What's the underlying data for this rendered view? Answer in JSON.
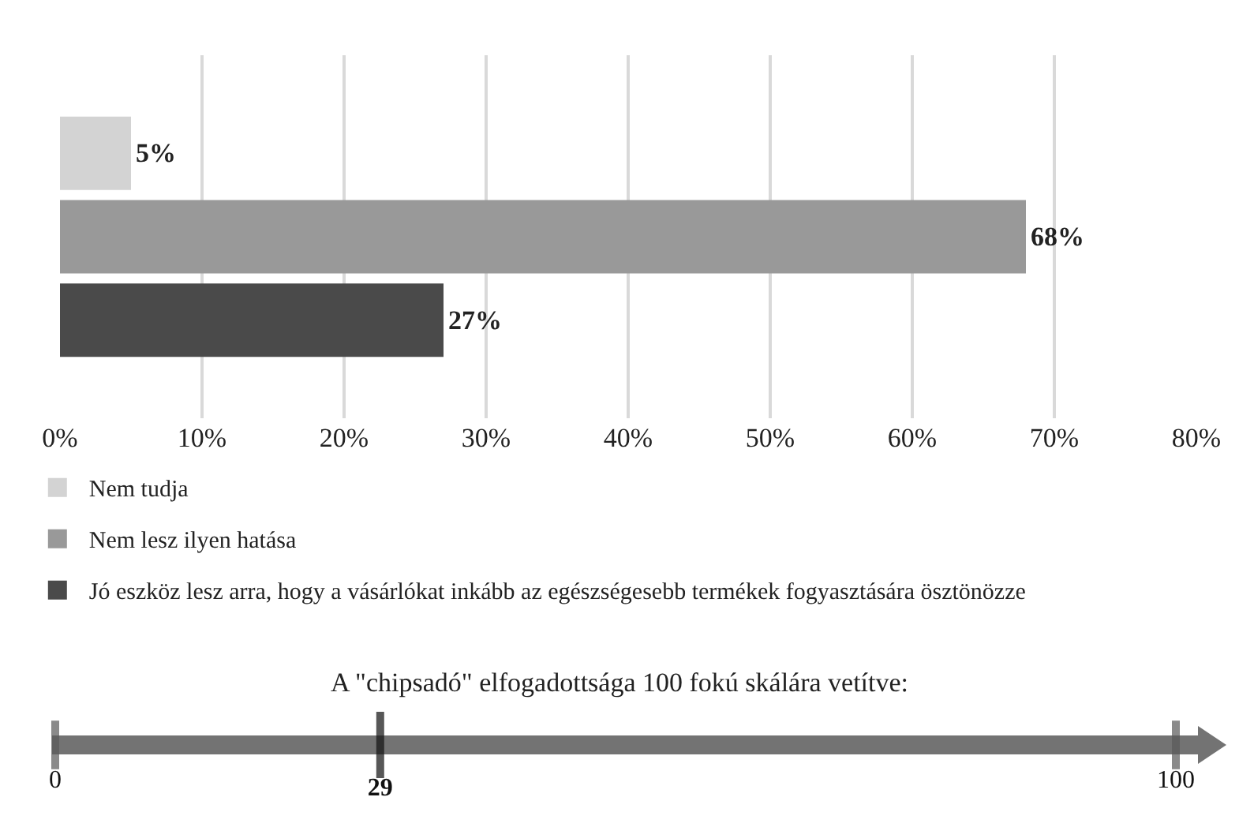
{
  "chart_data": [
    {
      "type": "bar",
      "orientation": "horizontal",
      "categories": [
        null
      ],
      "series": [
        {
          "name": "Nem tudja",
          "color": "#d3d3d3",
          "values": [
            5
          ],
          "value_labels": [
            "5%"
          ]
        },
        {
          "name": "Nem lesz ilyen hatása",
          "color": "#999999",
          "values": [
            68
          ],
          "value_labels": [
            "68%"
          ]
        },
        {
          "name": "Jó eszköz lesz arra, hogy a vásárlókat inkább az egészségesebb termékek fogyasztására ösztönözze",
          "color": "#4a4a4a",
          "values": [
            27
          ],
          "value_labels": [
            "27%"
          ]
        }
      ],
      "xlim": [
        0,
        80
      ],
      "xticks": [
        {
          "value": 0,
          "label": "0%"
        },
        {
          "value": 10,
          "label": "10%"
        },
        {
          "value": 20,
          "label": "20%"
        },
        {
          "value": 30,
          "label": "30%"
        },
        {
          "value": 40,
          "label": "40%"
        },
        {
          "value": 50,
          "label": "50%"
        },
        {
          "value": 60,
          "label": "60%"
        },
        {
          "value": 70,
          "label": "70%"
        },
        {
          "value": 80,
          "label": "80%"
        }
      ],
      "grid": "x",
      "legend": "bottom"
    },
    {
      "type": "other",
      "title": "A \"chipsadó\" elfogadottsága 100 fokú skálára vetítve:",
      "values": [
        0,
        29,
        100
      ],
      "value_labels": [
        "0",
        "29",
        "100"
      ],
      "colors": [
        "#5a5a5a",
        "#111111",
        "#5a5a5a"
      ],
      "color": "#737373"
    }
  ]
}
